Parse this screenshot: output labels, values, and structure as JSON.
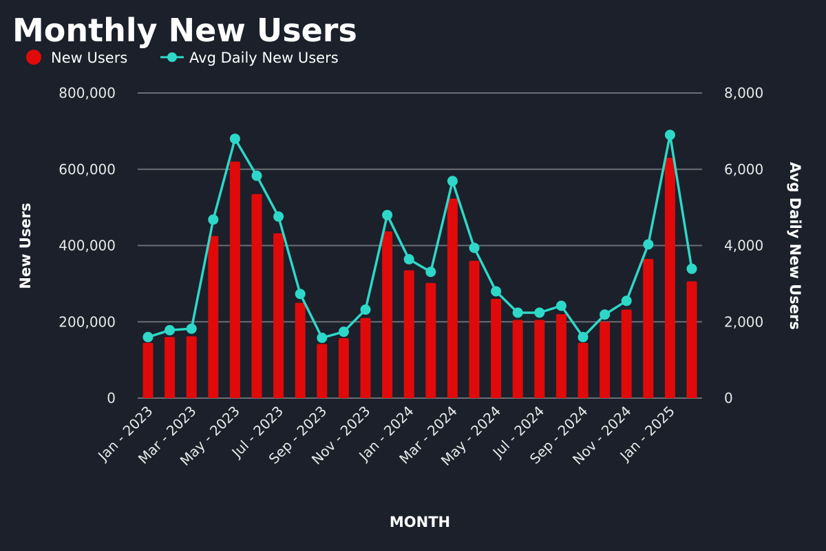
{
  "chart_data": {
    "type": "bar",
    "title": "Monthly New Users",
    "xlabel": "MONTH",
    "ylabel": "New Users",
    "y2label": "Avg Daily New Users",
    "ylim": [
      0,
      800000
    ],
    "y2lim": [
      0,
      8000
    ],
    "y_ticks": [
      "0",
      "200,000",
      "400,000",
      "600,000",
      "800,000"
    ],
    "y2_ticks": [
      "0",
      "2,000",
      "4,000",
      "6,000",
      "8,000"
    ],
    "grid": true,
    "legend_position": "top-left",
    "x_tick_labels": [
      "Jan - 2023",
      "Mar - 2023",
      "May - 2023",
      "Jul - 2023",
      "Sep - 2023",
      "Nov - 2023",
      "Jan - 2024",
      "Mar - 2024",
      "May - 2024",
      "Jul - 2024",
      "Sep - 2024",
      "Nov - 2024",
      "Jan - 2025"
    ],
    "categories": [
      "Jan 2023",
      "Feb 2023",
      "Mar 2023",
      "Apr 2023",
      "May 2023",
      "Jun 2023",
      "Jul 2023",
      "Aug 2023",
      "Sep 2023",
      "Oct 2023",
      "Nov 2023",
      "Dec 2023",
      "Jan 2024",
      "Feb 2024",
      "Mar 2024",
      "Apr 2024",
      "May 2024",
      "Jun 2024",
      "Jul 2024",
      "Aug 2024",
      "Sep 2024",
      "Oct 2024",
      "Nov 2024",
      "Dec 2024",
      "Jan 2025",
      "Feb 2025"
    ],
    "series": [
      {
        "name": "New Users",
        "type": "bar",
        "axis": "left",
        "color": "#e00a0a",
        "values": [
          145000,
          160000,
          162000,
          425000,
          620000,
          535000,
          432000,
          250000,
          142000,
          157000,
          210000,
          437000,
          335000,
          302000,
          523000,
          360000,
          260000,
          205000,
          205000,
          220000,
          145000,
          200000,
          232000,
          365000,
          630000,
          306000
        ]
      },
      {
        "name": "Avg Daily New Users",
        "type": "line",
        "axis": "right",
        "color": "#2ed8c8",
        "values": [
          1600,
          1780,
          1820,
          4680,
          6800,
          5830,
          4760,
          2730,
          1580,
          1740,
          2320,
          4800,
          3640,
          3310,
          5690,
          3940,
          2800,
          2240,
          2240,
          2420,
          1600,
          2190,
          2550,
          4030,
          6900,
          3390
        ]
      }
    ]
  }
}
